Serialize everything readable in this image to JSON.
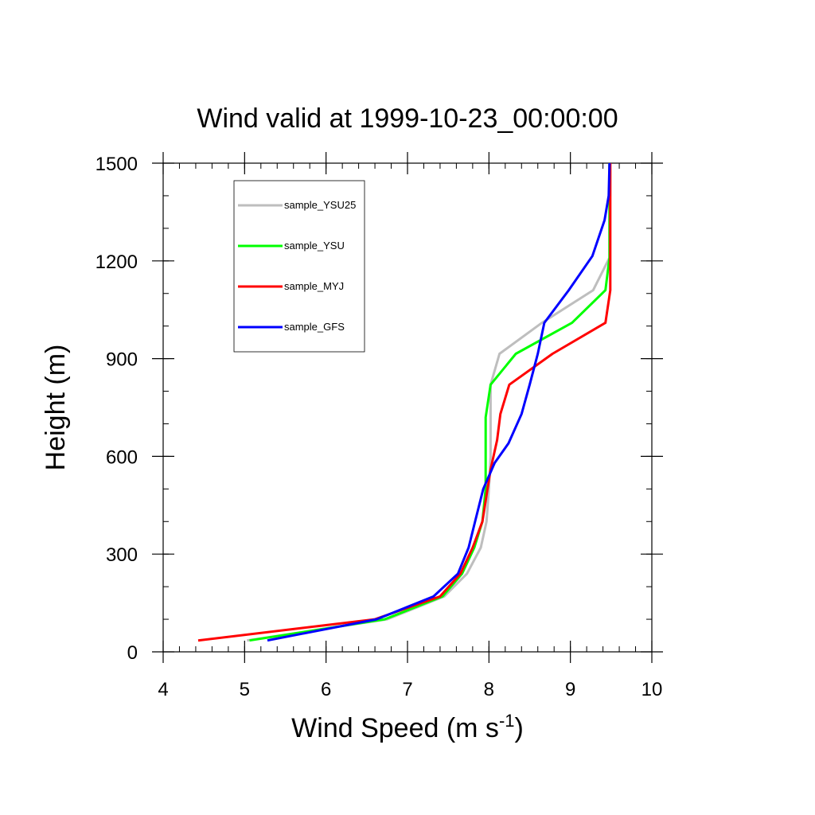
{
  "chart_data": {
    "type": "line",
    "title": "Wind valid at 1999-10-23_00:00:00",
    "xlabel": "Wind Speed (m s",
    "xlabel_sup": "-1",
    "xlabel_tail": ")",
    "ylabel": "Height (m)",
    "xlim": [
      4,
      10
    ],
    "ylim": [
      0,
      1500
    ],
    "xticks": [
      4,
      5,
      6,
      7,
      8,
      9,
      10
    ],
    "yticks": [
      0,
      300,
      600,
      900,
      1200,
      1500
    ],
    "grid": false,
    "legend_position": "top-left",
    "series": [
      {
        "name": "sample_YSU25",
        "color": "#bebebe",
        "points": [
          [
            5.03,
            35
          ],
          [
            6.75,
            100
          ],
          [
            7.45,
            170
          ],
          [
            7.73,
            240
          ],
          [
            7.9,
            320
          ],
          [
            7.97,
            400
          ],
          [
            8.0,
            500
          ],
          [
            8.02,
            600
          ],
          [
            8.02,
            700
          ],
          [
            8.02,
            820
          ],
          [
            8.13,
            915
          ],
          [
            8.65,
            1010
          ],
          [
            9.28,
            1110
          ],
          [
            9.48,
            1210
          ],
          [
            9.48,
            1300
          ],
          [
            9.48,
            1400
          ],
          [
            9.48,
            1500
          ]
        ]
      },
      {
        "name": "sample_YSU",
        "color": "#00ff00",
        "points": [
          [
            5.06,
            35
          ],
          [
            6.72,
            100
          ],
          [
            7.43,
            170
          ],
          [
            7.67,
            240
          ],
          [
            7.82,
            320
          ],
          [
            7.92,
            400
          ],
          [
            7.96,
            500
          ],
          [
            7.96,
            600
          ],
          [
            7.96,
            720
          ],
          [
            8.02,
            820
          ],
          [
            8.33,
            915
          ],
          [
            9.02,
            1010
          ],
          [
            9.43,
            1110
          ],
          [
            9.48,
            1210
          ],
          [
            9.48,
            1300
          ],
          [
            9.48,
            1400
          ],
          [
            9.48,
            1500
          ]
        ]
      },
      {
        "name": "sample_MYJ",
        "color": "#ff0000",
        "points": [
          [
            4.43,
            35
          ],
          [
            6.6,
            100
          ],
          [
            7.4,
            170
          ],
          [
            7.65,
            240
          ],
          [
            7.8,
            320
          ],
          [
            7.92,
            400
          ],
          [
            8.02,
            560
          ],
          [
            8.1,
            650
          ],
          [
            8.14,
            730
          ],
          [
            8.25,
            820
          ],
          [
            8.78,
            915
          ],
          [
            9.43,
            1010
          ],
          [
            9.49,
            1110
          ],
          [
            9.49,
            1210
          ],
          [
            9.49,
            1300
          ],
          [
            9.49,
            1400
          ],
          [
            9.49,
            1500
          ]
        ]
      },
      {
        "name": "sample_GFS",
        "color": "#0000ff",
        "points": [
          [
            5.28,
            35
          ],
          [
            6.62,
            100
          ],
          [
            7.32,
            170
          ],
          [
            7.62,
            240
          ],
          [
            7.75,
            320
          ],
          [
            7.83,
            400
          ],
          [
            7.93,
            500
          ],
          [
            8.07,
            580
          ],
          [
            8.24,
            640
          ],
          [
            8.4,
            730
          ],
          [
            8.5,
            820
          ],
          [
            8.6,
            915
          ],
          [
            8.68,
            1010
          ],
          [
            8.98,
            1110
          ],
          [
            9.27,
            1215
          ],
          [
            9.42,
            1325
          ],
          [
            9.47,
            1400
          ],
          [
            9.48,
            1500
          ]
        ]
      }
    ]
  }
}
